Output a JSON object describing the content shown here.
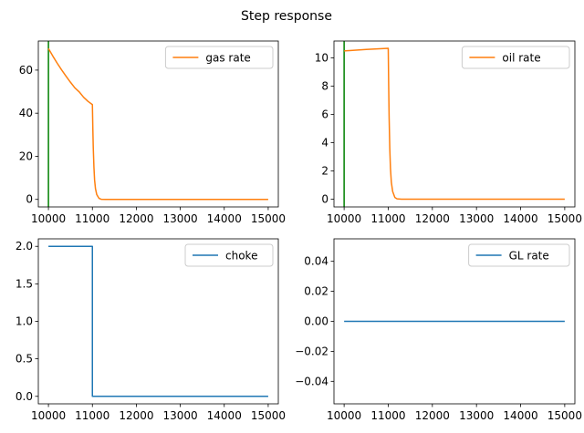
{
  "figure": {
    "title": "Step response"
  },
  "chart_data": [
    {
      "type": "line",
      "xlim": [
        9770,
        15230
      ],
      "ylim": [
        -3.5,
        73.5
      ],
      "xticks": [
        10000,
        11000,
        12000,
        13000,
        14000,
        15000
      ],
      "yticks": [
        0,
        20,
        40,
        60
      ],
      "legend_position": "top-right",
      "vlines": [
        {
          "x": 10000,
          "color": "#008000"
        }
      ],
      "series": [
        {
          "name": "gas rate",
          "color": "#ff7f0e",
          "points": [
            [
              10000,
              70
            ],
            [
              10100,
              66.5
            ],
            [
              10200,
              63.2
            ],
            [
              10300,
              60.1
            ],
            [
              10400,
              57.2
            ],
            [
              10500,
              54.4
            ],
            [
              10600,
              51.8
            ],
            [
              10700,
              49.9
            ],
            [
              10800,
              47.4
            ],
            [
              10900,
              45.5
            ],
            [
              11000,
              44
            ],
            [
              11010,
              33
            ],
            [
              11020,
              24
            ],
            [
              11035,
              15
            ],
            [
              11050,
              9
            ],
            [
              11070,
              5
            ],
            [
              11100,
              2.2
            ],
            [
              11150,
              0.5
            ],
            [
              11200,
              0.05
            ],
            [
              11300,
              0
            ],
            [
              15000,
              0
            ]
          ]
        }
      ]
    },
    {
      "type": "line",
      "xlim": [
        9770,
        15230
      ],
      "ylim": [
        -0.55,
        11.2
      ],
      "xticks": [
        10000,
        11000,
        12000,
        13000,
        14000,
        15000
      ],
      "yticks": [
        0,
        2,
        4,
        6,
        8,
        10
      ],
      "legend_position": "top-right",
      "vlines": [
        {
          "x": 10000,
          "color": "#008000"
        }
      ],
      "series": [
        {
          "name": "oil rate",
          "color": "#ff7f0e",
          "points": [
            [
              10000,
              10.5
            ],
            [
              10500,
              10.6
            ],
            [
              11000,
              10.68
            ],
            [
              11010,
              8
            ],
            [
              11020,
              5.8
            ],
            [
              11035,
              3.6
            ],
            [
              11050,
              2.2
            ],
            [
              11070,
              1.2
            ],
            [
              11100,
              0.55
            ],
            [
              11150,
              0.12
            ],
            [
              11200,
              0.02
            ],
            [
              11300,
              0
            ],
            [
              15000,
              0
            ]
          ]
        }
      ]
    },
    {
      "type": "line",
      "xlim": [
        9770,
        15230
      ],
      "ylim": [
        -0.1,
        2.1
      ],
      "xticks": [
        10000,
        11000,
        12000,
        13000,
        14000,
        15000
      ],
      "yticks": [
        0.0,
        0.5,
        1.0,
        1.5,
        2.0
      ],
      "legend_position": "top-right",
      "vlines": [],
      "series": [
        {
          "name": "choke",
          "color": "#1f77b4",
          "points": [
            [
              10000,
              2.0
            ],
            [
              11000,
              2.0
            ],
            [
              11000,
              0.0
            ],
            [
              15000,
              0.0
            ]
          ]
        }
      ]
    },
    {
      "type": "line",
      "xlim": [
        9770,
        15230
      ],
      "ylim": [
        -0.055,
        0.055
      ],
      "xticks": [
        10000,
        11000,
        12000,
        13000,
        14000,
        15000
      ],
      "yticks": [
        -0.04,
        -0.02,
        0.0,
        0.02,
        0.04
      ],
      "legend_position": "top-right",
      "vlines": [],
      "series": [
        {
          "name": "GL rate",
          "color": "#1f77b4",
          "points": [
            [
              10000,
              0
            ],
            [
              15000,
              0
            ]
          ]
        }
      ]
    }
  ]
}
